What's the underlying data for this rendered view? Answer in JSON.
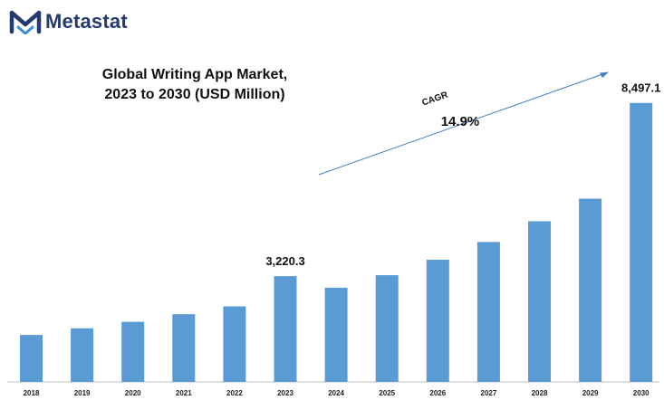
{
  "brand": {
    "name": "Metastat",
    "logo_icon": "metastat-m-icon",
    "color": "#253a6e",
    "accent": "#3a8fd6"
  },
  "title_lines": [
    "Global Writing App Market,",
    "2023 to 2030 (USD Million)"
  ],
  "cagr": {
    "label": "CAGR",
    "value": "14.9%"
  },
  "chart_data": {
    "type": "bar",
    "title": "Global Writing App Market, 2023 to 2030 (USD Million)",
    "categories": [
      "2018",
      "2019",
      "2020",
      "2021",
      "2022",
      "2023",
      "2024",
      "2025",
      "2026",
      "2027",
      "2028",
      "2029",
      "2030"
    ],
    "values": [
      1430,
      1630,
      1830,
      2060,
      2300,
      3220.3,
      2870,
      3250,
      3720,
      4260,
      4890,
      5580,
      8497.1
    ],
    "data_labels": [
      {
        "category": "2023",
        "text": "3,220.3"
      },
      {
        "category": "2030",
        "text": "8,497.1"
      }
    ],
    "bar_color": "#5b9bd5",
    "ylim": [
      0,
      9700
    ],
    "grid": false,
    "legend": "none",
    "xlabel": "",
    "ylabel": ""
  }
}
